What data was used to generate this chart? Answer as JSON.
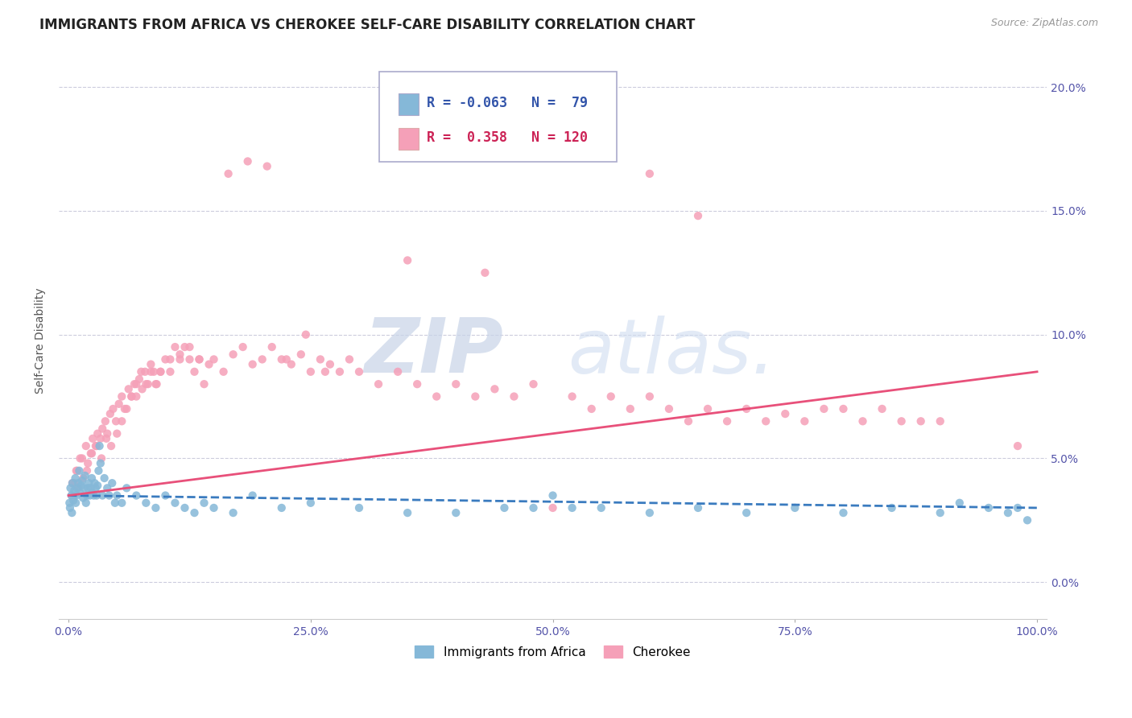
{
  "title": "IMMIGRANTS FROM AFRICA VS CHEROKEE SELF-CARE DISABILITY CORRELATION CHART",
  "source": "Source: ZipAtlas.com",
  "ylabel": "Self-Care Disability",
  "legend_blue_r": "-0.063",
  "legend_blue_n": "79",
  "legend_pink_r": "0.358",
  "legend_pink_n": "120",
  "blue_color": "#85b8d8",
  "pink_color": "#f5a0b8",
  "blue_line_color": "#3a7bbf",
  "pink_line_color": "#e8507a",
  "xlim": [
    -1,
    101
  ],
  "ylim": [
    -1.5,
    21
  ],
  "ytick_vals": [
    0,
    5,
    10,
    15,
    20
  ],
  "xtick_vals": [
    0,
    25,
    50,
    75,
    100
  ],
  "blue_scatter_x": [
    0.1,
    0.2,
    0.3,
    0.4,
    0.5,
    0.6,
    0.7,
    0.8,
    0.9,
    1.0,
    1.1,
    1.2,
    1.3,
    1.4,
    1.5,
    1.6,
    1.7,
    1.8,
    1.9,
    2.0,
    2.1,
    2.2,
    2.3,
    2.4,
    2.5,
    2.6,
    2.7,
    2.8,
    2.9,
    3.0,
    3.1,
    3.2,
    3.3,
    3.5,
    3.7,
    4.0,
    4.2,
    4.5,
    4.8,
    5.0,
    5.5,
    6.0,
    7.0,
    8.0,
    9.0,
    10.0,
    11.0,
    12.0,
    13.0,
    14.0,
    15.0,
    17.0,
    19.0,
    22.0,
    25.0,
    30.0,
    35.0,
    40.0,
    45.0,
    48.0,
    50.0,
    52.0,
    55.0,
    60.0,
    65.0,
    70.0,
    75.0,
    80.0,
    85.0,
    90.0,
    92.0,
    95.0,
    97.0,
    98.0,
    99.0,
    0.15,
    0.35,
    0.55,
    0.75
  ],
  "blue_scatter_y": [
    3.2,
    3.8,
    3.5,
    4.0,
    3.3,
    3.7,
    4.2,
    3.5,
    3.8,
    4.0,
    4.5,
    3.6,
    3.9,
    4.1,
    3.4,
    3.8,
    4.3,
    3.2,
    3.5,
    3.8,
    4.0,
    3.5,
    3.8,
    4.2,
    3.6,
    3.5,
    4.0,
    3.8,
    3.5,
    3.9,
    4.5,
    5.5,
    4.8,
    3.5,
    4.2,
    3.8,
    3.5,
    4.0,
    3.2,
    3.5,
    3.2,
    3.8,
    3.5,
    3.2,
    3.0,
    3.5,
    3.2,
    3.0,
    2.8,
    3.2,
    3.0,
    2.8,
    3.5,
    3.0,
    3.2,
    3.0,
    2.8,
    2.8,
    3.0,
    3.0,
    3.5,
    3.0,
    3.0,
    2.8,
    3.0,
    2.8,
    3.0,
    2.8,
    3.0,
    2.8,
    3.2,
    3.0,
    2.8,
    3.0,
    2.5,
    3.0,
    2.8,
    3.5,
    3.2
  ],
  "pink_scatter_x": [
    0.3,
    0.6,
    0.8,
    1.0,
    1.2,
    1.5,
    1.8,
    2.0,
    2.3,
    2.5,
    2.8,
    3.0,
    3.3,
    3.5,
    3.8,
    4.0,
    4.3,
    4.6,
    4.9,
    5.2,
    5.5,
    5.8,
    6.2,
    6.5,
    6.8,
    7.0,
    7.3,
    7.6,
    7.9,
    8.2,
    8.5,
    8.8,
    9.1,
    9.5,
    10.0,
    10.5,
    11.0,
    11.5,
    12.0,
    12.5,
    13.0,
    13.5,
    14.0,
    15.0,
    16.0,
    17.0,
    18.0,
    19.0,
    20.0,
    21.0,
    22.0,
    23.0,
    24.0,
    25.0,
    26.0,
    27.0,
    28.0,
    29.0,
    30.0,
    32.0,
    34.0,
    36.0,
    38.0,
    40.0,
    42.0,
    44.0,
    46.0,
    48.0,
    50.0,
    52.0,
    54.0,
    56.0,
    58.0,
    60.0,
    62.0,
    64.0,
    66.0,
    68.0,
    70.0,
    72.0,
    74.0,
    76.0,
    78.0,
    80.0,
    82.0,
    84.0,
    86.0,
    88.0,
    90.0,
    0.4,
    0.9,
    1.4,
    1.9,
    2.4,
    2.9,
    3.4,
    3.9,
    4.4,
    5.0,
    5.5,
    6.0,
    6.5,
    7.0,
    7.5,
    8.0,
    8.5,
    9.0,
    9.5,
    10.5,
    11.5,
    12.5,
    13.5,
    14.5,
    16.5,
    18.5,
    20.5,
    22.5,
    24.5,
    26.5,
    98.0
  ],
  "pink_scatter_y": [
    3.5,
    4.0,
    4.5,
    3.8,
    5.0,
    4.2,
    5.5,
    4.8,
    5.2,
    5.8,
    5.5,
    6.0,
    5.8,
    6.2,
    6.5,
    6.0,
    6.8,
    7.0,
    6.5,
    7.2,
    7.5,
    7.0,
    7.8,
    7.5,
    8.0,
    7.5,
    8.2,
    7.8,
    8.5,
    8.0,
    8.8,
    8.5,
    8.0,
    8.5,
    9.0,
    8.5,
    9.5,
    9.0,
    9.5,
    9.0,
    8.5,
    9.0,
    8.0,
    9.0,
    8.5,
    9.2,
    9.5,
    8.8,
    9.0,
    9.5,
    9.0,
    8.8,
    9.2,
    8.5,
    9.0,
    8.8,
    8.5,
    9.0,
    8.5,
    8.0,
    8.5,
    8.0,
    7.5,
    8.0,
    7.5,
    7.8,
    7.5,
    8.0,
    3.0,
    7.5,
    7.0,
    7.5,
    7.0,
    7.5,
    7.0,
    6.5,
    7.0,
    6.5,
    7.0,
    6.5,
    6.8,
    6.5,
    7.0,
    7.0,
    6.5,
    7.0,
    6.5,
    6.5,
    6.5,
    4.0,
    4.5,
    5.0,
    4.5,
    5.2,
    5.5,
    5.0,
    5.8,
    5.5,
    6.0,
    6.5,
    7.0,
    7.5,
    8.0,
    8.5,
    8.0,
    8.5,
    8.0,
    8.5,
    9.0,
    9.2,
    9.5,
    9.0,
    8.8,
    16.5,
    17.0,
    16.8,
    9.0,
    10.0,
    8.5,
    5.5
  ],
  "blue_trend": [
    3.5,
    3.0
  ],
  "pink_trend": [
    3.5,
    8.5
  ],
  "pink_outliers_x": [
    35.0,
    43.0,
    50.0,
    60.0,
    65.0
  ],
  "pink_outliers_y": [
    13.0,
    12.5,
    17.5,
    16.5,
    14.8
  ]
}
